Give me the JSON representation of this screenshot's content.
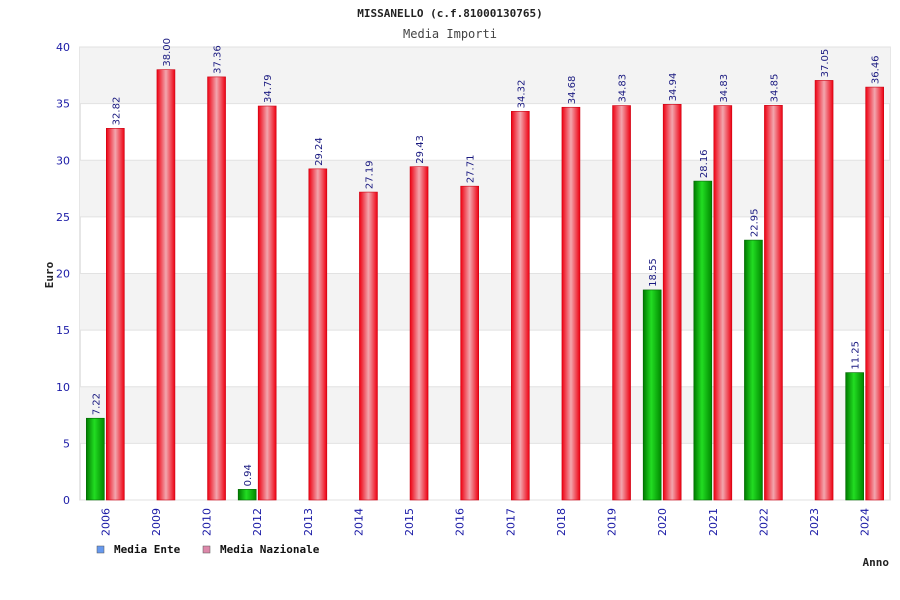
{
  "chart_data": {
    "type": "bar",
    "title": "MISSANELLO (c.f.81000130765)",
    "subtitle": "Media Importi",
    "ylabel": "Euro",
    "xlabel": "Anno",
    "ylim": [
      0,
      40
    ],
    "yticks": [
      0,
      5,
      10,
      15,
      20,
      25,
      30,
      35,
      40
    ],
    "grid": true,
    "legend_position": "bottom-left",
    "categories": [
      "2006",
      "2009",
      "2010",
      "2012",
      "2013",
      "2014",
      "2015",
      "2016",
      "2017",
      "2018",
      "2019",
      "2020",
      "2021",
      "2022",
      "2023",
      "2024"
    ],
    "series": [
      {
        "name": "Media Ente",
        "color": "#00b400",
        "legend_color": "#6699ee",
        "values": [
          7.22,
          null,
          null,
          0.94,
          null,
          null,
          null,
          null,
          null,
          null,
          null,
          18.55,
          28.16,
          22.95,
          null,
          11.25
        ],
        "labels": [
          "7.22",
          "",
          "",
          "0.94",
          "",
          "",
          "",
          "",
          "",
          "",
          "",
          "18.55",
          "28.16",
          "22.95",
          "",
          "11.25"
        ]
      },
      {
        "name": "Media Nazionale",
        "color": "#ee1122",
        "legend_color": "#dd88aa",
        "values": [
          32.82,
          38.0,
          37.36,
          34.79,
          29.24,
          27.19,
          29.43,
          27.71,
          34.32,
          34.68,
          34.83,
          34.94,
          34.83,
          34.85,
          37.05,
          36.46
        ],
        "labels": [
          "32.82",
          "38.00",
          "37.36",
          "34.79",
          "29.24",
          "27.19",
          "29.43",
          "27.71",
          "34.32",
          "34.68",
          "34.83",
          "34.94",
          "34.83",
          "34.85",
          "37.05",
          "36.46"
        ]
      }
    ]
  }
}
